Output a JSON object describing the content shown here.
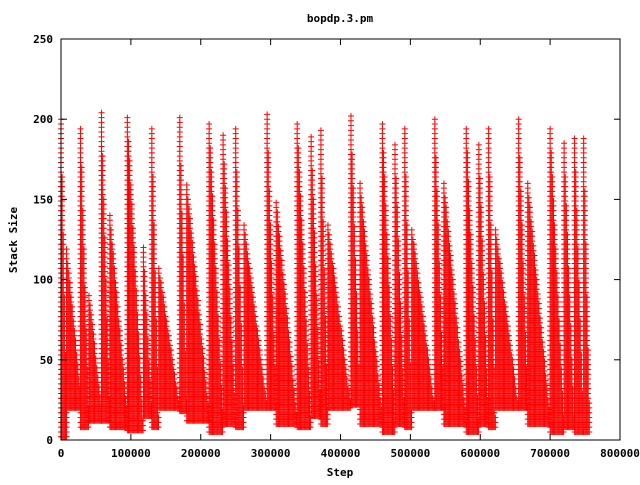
{
  "chart_data": {
    "type": "scatter",
    "title": "bopdp.3.pm",
    "xlabel": "Step",
    "ylabel": "Stack Size",
    "xlim": [
      0,
      800000
    ],
    "ylim": [
      0,
      250
    ],
    "x_ticks": [
      0,
      100000,
      200000,
      300000,
      400000,
      500000,
      600000,
      700000,
      800000
    ],
    "x_tick_labels": [
      "0",
      "100000",
      "200000",
      "300000",
      "400000",
      "500000",
      "600000",
      "700000",
      "800000"
    ],
    "y_ticks": [
      0,
      50,
      100,
      150,
      200,
      250
    ],
    "y_tick_labels": [
      "0",
      "50",
      "100",
      "150",
      "200",
      "250"
    ],
    "grid": false,
    "legend": "none",
    "marker": "plus",
    "series_color": "#ff0000",
    "series": [
      {
        "segments": [
          {
            "x0": 0,
            "x1": 8000,
            "peak": 202,
            "trough_start": 2,
            "trough_end": 18
          },
          {
            "x0": 8000,
            "x1": 28000,
            "peak": 120,
            "trough_start": 60,
            "trough_end": 30,
            "fill_low": 20
          },
          {
            "x0": 28000,
            "x1": 40000,
            "peak": 196,
            "trough_start": 8,
            "trough_end": 8
          },
          {
            "x0": 40000,
            "x1": 58000,
            "peak": 92,
            "trough_start": 40,
            "trough_end": 20,
            "fill_low": 12
          },
          {
            "x0": 58000,
            "x1": 70000,
            "peak": 204,
            "trough_start": 15,
            "trough_end": 12
          },
          {
            "x0": 70000,
            "x1": 95000,
            "peak": 140,
            "trough_start": 60,
            "trough_end": 15,
            "fill_low": 8
          },
          {
            "x0": 95000,
            "x1": 118000,
            "peak": 201,
            "trough_start": 6,
            "trough_end": 8
          },
          {
            "x0": 118000,
            "x1": 130000,
            "peak": 120,
            "trough_start": 40,
            "trough_end": 15
          },
          {
            "x0": 130000,
            "x1": 140000,
            "peak": 195,
            "trough_start": 8,
            "trough_end": 8
          },
          {
            "x0": 140000,
            "x1": 170000,
            "peak": 108,
            "trough_start": 40,
            "trough_end": 20,
            "fill_low": 20
          },
          {
            "x0": 170000,
            "x1": 180000,
            "peak": 203,
            "trough_start": 20,
            "trough_end": 18
          },
          {
            "x0": 180000,
            "x1": 212000,
            "peak": 160,
            "trough_start": 50,
            "trough_end": 15,
            "fill_low": 12
          },
          {
            "x0": 212000,
            "x1": 232000,
            "peak": 199,
            "trough_start": 5,
            "trough_end": 10
          },
          {
            "x0": 232000,
            "x1": 250000,
            "peak": 190,
            "trough_start": 40,
            "trough_end": 10
          },
          {
            "x0": 250000,
            "x1": 262000,
            "peak": 194,
            "trough_start": 8,
            "trough_end": 10
          },
          {
            "x0": 262000,
            "x1": 295000,
            "peak": 135,
            "trough_start": 40,
            "trough_end": 20,
            "fill_low": 20
          },
          {
            "x0": 295000,
            "x1": 308000,
            "peak": 203,
            "trough_start": 25,
            "trough_end": 20
          },
          {
            "x0": 308000,
            "x1": 338000,
            "peak": 150,
            "trough_start": 45,
            "trough_end": 12,
            "fill_low": 10
          },
          {
            "x0": 338000,
            "x1": 358000,
            "peak": 199,
            "trough_start": 8,
            "trough_end": 8
          },
          {
            "x0": 358000,
            "x1": 372000,
            "peak": 190,
            "trough_start": 40,
            "trough_end": 15
          },
          {
            "x0": 372000,
            "x1": 382000,
            "peak": 195,
            "trough_start": 10,
            "trough_end": 12
          },
          {
            "x0": 382000,
            "x1": 415000,
            "peak": 135,
            "trough_start": 40,
            "trough_end": 20,
            "fill_low": 20
          },
          {
            "x0": 415000,
            "x1": 428000,
            "peak": 202,
            "trough_start": 25,
            "trough_end": 22
          },
          {
            "x0": 428000,
            "x1": 460000,
            "peak": 160,
            "trough_start": 40,
            "trough_end": 12,
            "fill_low": 10
          },
          {
            "x0": 460000,
            "x1": 478000,
            "peak": 198,
            "trough_start": 5,
            "trough_end": 8
          },
          {
            "x0": 478000,
            "x1": 492000,
            "peak": 185,
            "trough_start": 40,
            "trough_end": 10
          },
          {
            "x0": 492000,
            "x1": 502000,
            "peak": 196,
            "trough_start": 8,
            "trough_end": 10
          },
          {
            "x0": 502000,
            "x1": 535000,
            "peak": 133,
            "trough_start": 40,
            "trough_end": 20,
            "fill_low": 20
          },
          {
            "x0": 535000,
            "x1": 548000,
            "peak": 201,
            "trough_start": 25,
            "trough_end": 20
          },
          {
            "x0": 548000,
            "x1": 580000,
            "peak": 160,
            "trough_start": 40,
            "trough_end": 12,
            "fill_low": 10
          },
          {
            "x0": 580000,
            "x1": 598000,
            "peak": 196,
            "trough_start": 5,
            "trough_end": 8
          },
          {
            "x0": 598000,
            "x1": 612000,
            "peak": 185,
            "trough_start": 40,
            "trough_end": 10
          },
          {
            "x0": 612000,
            "x1": 622000,
            "peak": 196,
            "trough_start": 8,
            "trough_end": 8
          },
          {
            "x0": 622000,
            "x1": 655000,
            "peak": 132,
            "trough_start": 40,
            "trough_end": 20,
            "fill_low": 20
          },
          {
            "x0": 655000,
            "x1": 668000,
            "peak": 201,
            "trough_start": 25,
            "trough_end": 20
          },
          {
            "x0": 668000,
            "x1": 700000,
            "peak": 160,
            "trough_start": 40,
            "trough_end": 12,
            "fill_low": 10
          },
          {
            "x0": 700000,
            "x1": 720000,
            "peak": 196,
            "trough_start": 5,
            "trough_end": 8
          },
          {
            "x0": 720000,
            "x1": 735000,
            "peak": 185,
            "trough_start": 40,
            "trough_end": 8
          },
          {
            "x0": 735000,
            "x1": 748000,
            "peak": 190,
            "trough_start": 5,
            "trough_end": 5
          },
          {
            "x0": 748000,
            "x1": 757000,
            "peak": 188,
            "trough_start": 20,
            "trough_end": 5
          }
        ]
      }
    ]
  }
}
